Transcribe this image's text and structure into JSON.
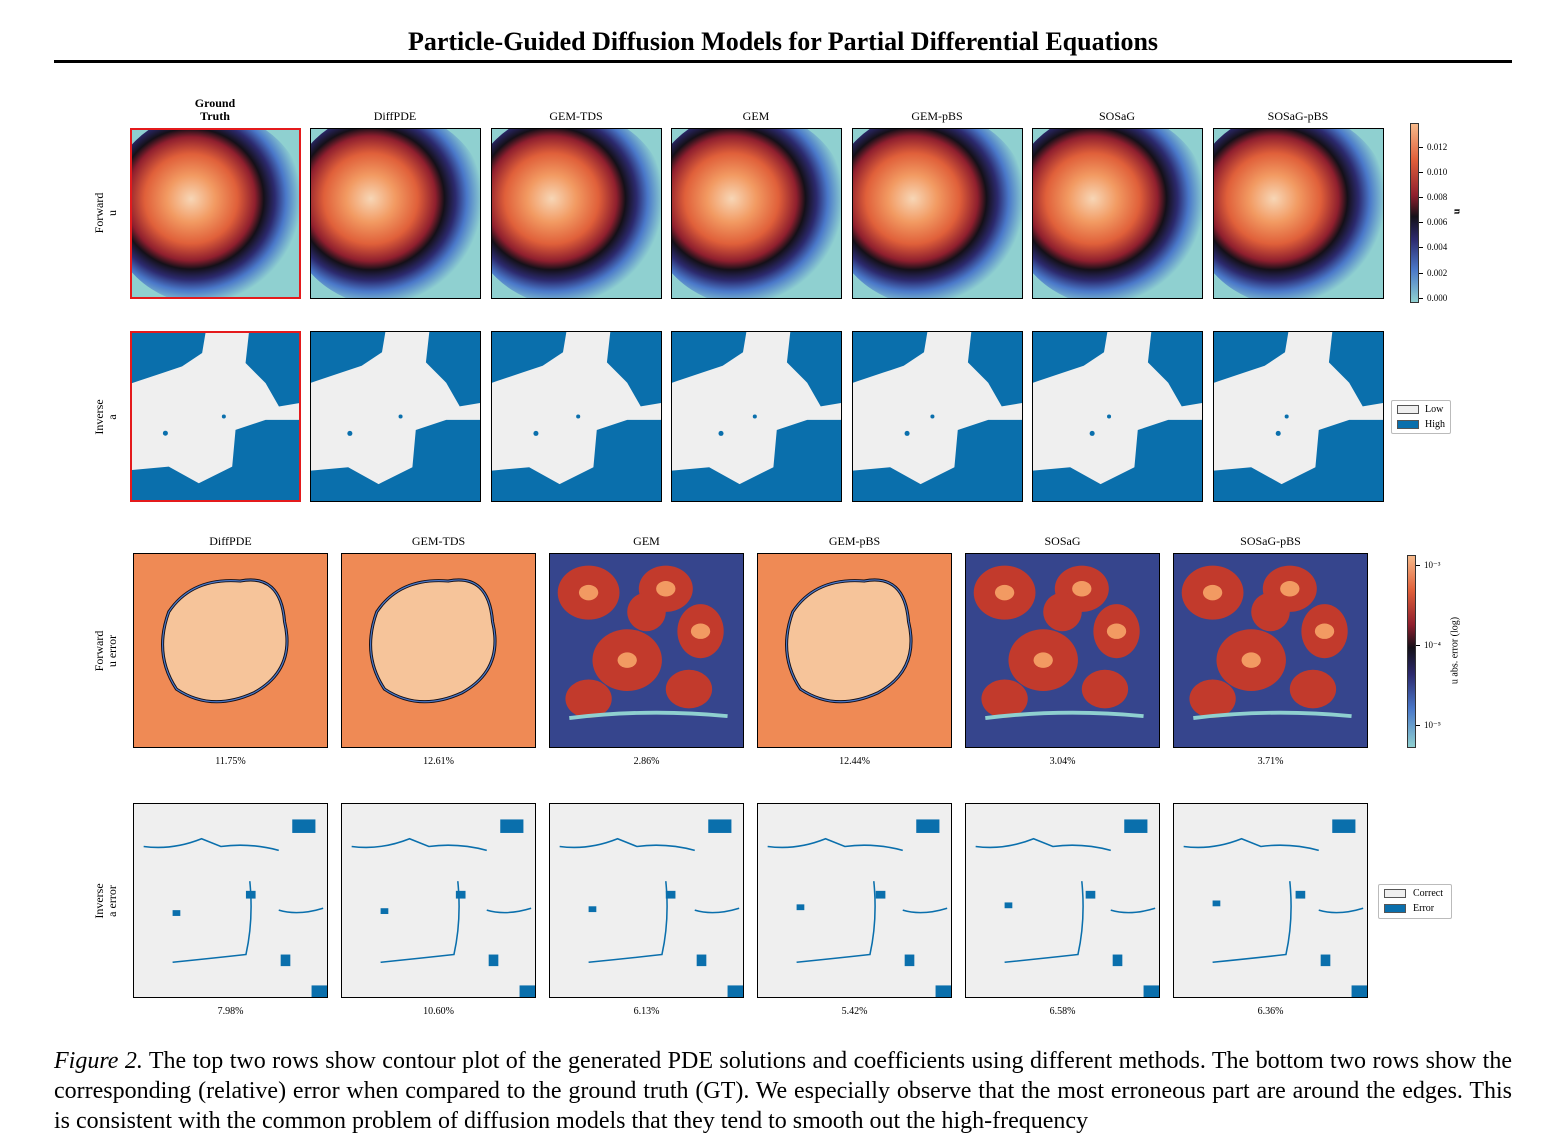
{
  "paper": {
    "title": "Particle-Guided Diffusion Models for Partial Differential Equations"
  },
  "figure": {
    "top_columns": [
      "Ground\nTruth",
      "DiffPDE",
      "GEM-TDS",
      "GEM",
      "GEM-pBS",
      "SOSaG",
      "SOSaG-pBS"
    ],
    "bottom_columns": [
      "DiffPDE",
      "GEM-TDS",
      "GEM",
      "GEM-pBS",
      "SOSaG",
      "SOSaG-pBS"
    ],
    "row_labels": {
      "forward_u": [
        "Forward",
        "u"
      ],
      "inverse_a": [
        "Inverse",
        "a"
      ],
      "forward_u_error": [
        "Forward",
        "u error"
      ],
      "inverse_a_error": [
        "Inverse",
        "a error"
      ]
    },
    "forward_u_error_metrics": [
      "11.75%",
      "12.61%",
      "2.86%",
      "12.44%",
      "3.04%",
      "3.71%"
    ],
    "inverse_a_error_metrics": [
      "7.98%",
      "10.60%",
      "6.13%",
      "5.42%",
      "6.58%",
      "6.36%"
    ],
    "u_colorbar": {
      "label": "u",
      "ticks": [
        "0.012",
        "0.010",
        "0.008",
        "0.006",
        "0.004",
        "0.002",
        "0.000"
      ]
    },
    "error_colorbar": {
      "label": "u abs. error (log)",
      "ticks": [
        "10⁻³",
        "10⁻⁴",
        "10⁻⁵"
      ]
    },
    "legend_a": {
      "low": "Low",
      "high": "High"
    },
    "legend_err": {
      "correct": "Correct",
      "error": "Error"
    },
    "colors": {
      "field_high": "#f7d6b6",
      "field_mid": "#e0603a",
      "field_zero": "#141018",
      "field_low": "#4a78c9",
      "field_bg": "#8fd0d0",
      "binary_high": "#0a6fac",
      "binary_low": "#efefef",
      "gt_border": "#e41a1c"
    }
  },
  "caption": {
    "label": "Figure 2.",
    "text": "The top two rows show contour plot of the generated PDE solutions and coefficients using different methods. The bottom two rows show the corresponding (relative) error when compared to the ground truth (GT). We especially observe that the most erroneous part are around the edges. This is consistent with the common problem of diffusion models that they tend to smooth out the high-frequency"
  }
}
